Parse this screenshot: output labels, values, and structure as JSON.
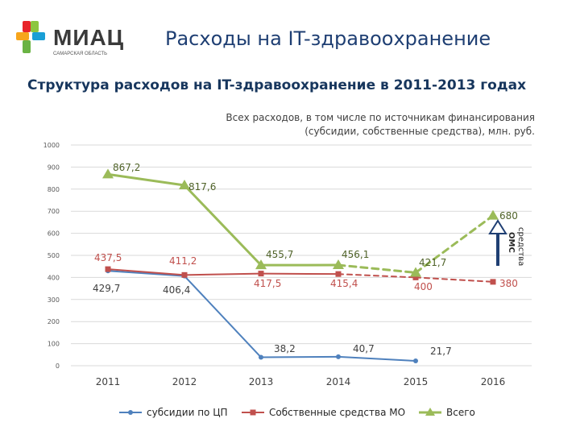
{
  "header": {
    "logo_text": "МИАЦ",
    "logo_subtext": "САМАРСКАЯ ОБЛАСТЬ",
    "title": "Расходы на IT-здравоохранение"
  },
  "slide": {
    "subtitle": "Структура расходов на IT-здравоохранение в 2011-2013 годах",
    "note_line1": "Всех расходов, в том числе по источникам финансирования",
    "note_line2": "(субсидии, собственные средства), млн. руб."
  },
  "annotation": {
    "line1": "средства",
    "line2": "ОМС"
  },
  "chart_data": {
    "type": "line",
    "categories": [
      "2011",
      "2012",
      "2013",
      "2014",
      "2015",
      "2016"
    ],
    "ylim": [
      0,
      1000
    ],
    "yticks": [
      "0",
      "100",
      "200",
      "300",
      "400",
      "500",
      "600",
      "700",
      "800",
      "900",
      "1000"
    ],
    "grid": true,
    "legend_position": "bottom",
    "series": [
      {
        "name": "субсидии по ЦП",
        "color": "#4f81bd",
        "values": [
          429.7,
          406.4,
          38.2,
          40.7,
          21.7,
          null
        ],
        "labels": [
          "429,7",
          "406,4",
          "38,2",
          "40,7",
          "21,7",
          ""
        ],
        "label_color": "#404040",
        "dashed_from_index": null
      },
      {
        "name": "Собственные средства МО",
        "color": "#c0504d",
        "values": [
          437.5,
          411.2,
          417.5,
          415.4,
          400,
          380
        ],
        "labels": [
          "437,5",
          "411,2",
          "417,5",
          "415,4",
          "400",
          "380"
        ],
        "label_color": "#c0504d",
        "dashed_from_index": 3
      },
      {
        "name": "Всего",
        "color": "#9bbb59",
        "values": [
          867.2,
          817.6,
          455.7,
          456.1,
          421.7,
          680
        ],
        "labels": [
          "867,2",
          "817,6",
          "455,7",
          "456,1",
          "421,7",
          "680"
        ],
        "label_color": "#4f6228",
        "dashed_from_index": 3
      }
    ]
  }
}
